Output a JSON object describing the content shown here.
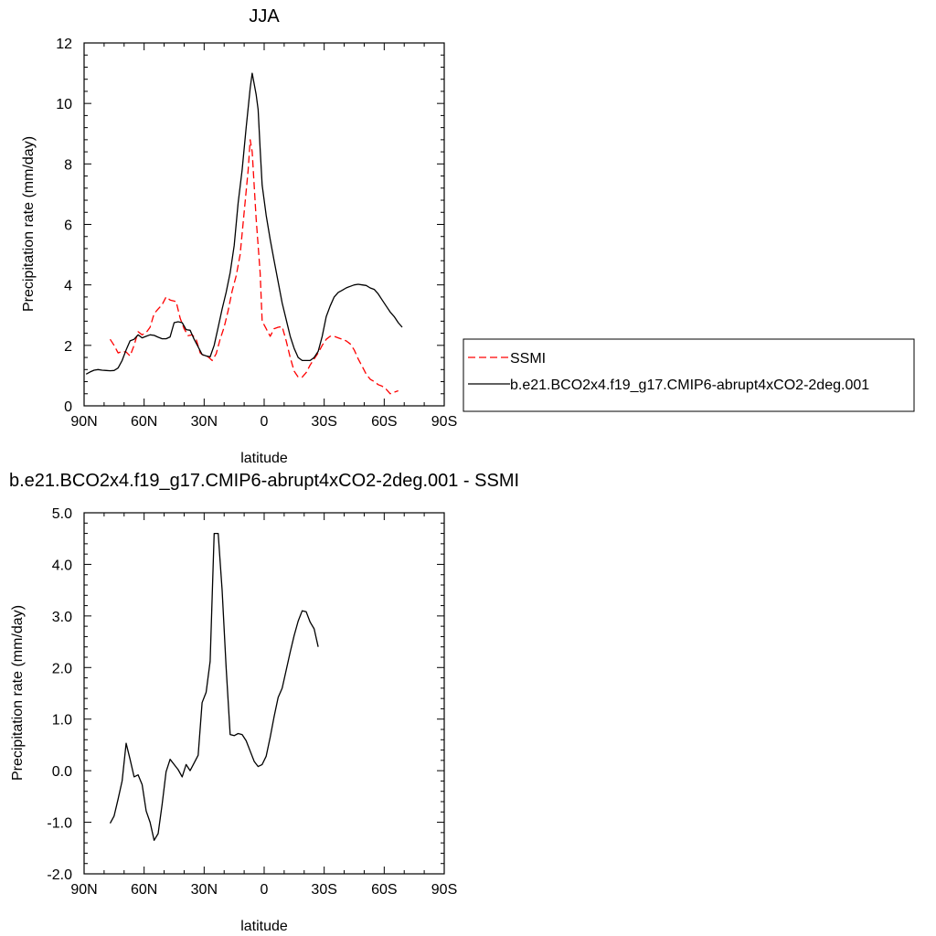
{
  "chart_data": [
    {
      "type": "line",
      "title": "JJA",
      "xlabel": "latitude",
      "ylabel": "Precipitation rate (mm/day)",
      "xlim": [
        90,
        -90
      ],
      "ylim": [
        0,
        12
      ],
      "x_ticks": [
        {
          "value": 90,
          "label": "90N"
        },
        {
          "value": 60,
          "label": "60N"
        },
        {
          "value": 30,
          "label": "30N"
        },
        {
          "value": 0,
          "label": "0"
        },
        {
          "value": -30,
          "label": "30S"
        },
        {
          "value": -60,
          "label": "60S"
        },
        {
          "value": -90,
          "label": "90S"
        }
      ],
      "y_ticks": [
        {
          "value": 0,
          "label": "0"
        },
        {
          "value": 2,
          "label": "2"
        },
        {
          "value": 4,
          "label": "4"
        },
        {
          "value": 6,
          "label": "6"
        },
        {
          "value": 8,
          "label": "8"
        },
        {
          "value": 10,
          "label": "10"
        },
        {
          "value": 12,
          "label": "12"
        }
      ],
      "legend_placement": "right",
      "series": [
        {
          "name": "SSMI",
          "color": "#ff0000",
          "dash": true,
          "points": [
            [
              77,
              2.2
            ],
            [
              75,
              2.0
            ],
            [
              73,
              1.75
            ],
            [
              71,
              1.8
            ],
            [
              69,
              1.78
            ],
            [
              67,
              1.65
            ],
            [
              65,
              2.0
            ],
            [
              63,
              2.45
            ],
            [
              61,
              2.35
            ],
            [
              59,
              2.42
            ],
            [
              57,
              2.6
            ],
            [
              55,
              3.05
            ],
            [
              53,
              3.2
            ],
            [
              51,
              3.35
            ],
            [
              49,
              3.6
            ],
            [
              47,
              3.5
            ],
            [
              44,
              3.45
            ],
            [
              42,
              2.9
            ],
            [
              40,
              2.55
            ],
            [
              38,
              2.32
            ],
            [
              36,
              2.35
            ],
            [
              34,
              2.2
            ],
            [
              32,
              1.75
            ],
            [
              30,
              1.65
            ],
            [
              28,
              1.62
            ],
            [
              26,
              1.5
            ],
            [
              24,
              1.72
            ],
            [
              22,
              2.2
            ],
            [
              20,
              2.6
            ],
            [
              18,
              3.15
            ],
            [
              16,
              3.8
            ],
            [
              14,
              4.3
            ],
            [
              12,
              5.0
            ],
            [
              10,
              6.4
            ],
            [
              8,
              7.8
            ],
            [
              7,
              8.8
            ],
            [
              6,
              8.4
            ],
            [
              4,
              6.2
            ],
            [
              2,
              4.4
            ],
            [
              1,
              2.8
            ],
            [
              -1,
              2.55
            ],
            [
              -3,
              2.3
            ],
            [
              -5,
              2.55
            ],
            [
              -7,
              2.6
            ],
            [
              -9,
              2.62
            ],
            [
              -11,
              2.15
            ],
            [
              -13,
              1.6
            ],
            [
              -15,
              1.15
            ],
            [
              -17,
              0.95
            ],
            [
              -19,
              0.95
            ],
            [
              -21,
              1.1
            ],
            [
              -23,
              1.35
            ],
            [
              -25,
              1.55
            ],
            [
              -27,
              1.75
            ],
            [
              -29,
              2.0
            ],
            [
              -31,
              2.2
            ],
            [
              -33,
              2.3
            ],
            [
              -35,
              2.3
            ],
            [
              -37,
              2.25
            ],
            [
              -39,
              2.2
            ],
            [
              -41,
              2.15
            ],
            [
              -43,
              2.05
            ],
            [
              -45,
              1.85
            ],
            [
              -47,
              1.55
            ],
            [
              -49,
              1.3
            ],
            [
              -51,
              1.05
            ],
            [
              -53,
              0.88
            ],
            [
              -55,
              0.8
            ],
            [
              -57,
              0.7
            ],
            [
              -59,
              0.65
            ],
            [
              -61,
              0.55
            ],
            [
              -63,
              0.4
            ],
            [
              -65,
              0.45
            ],
            [
              -67,
              0.5
            ]
          ]
        },
        {
          "name": "b.e21.BCO2x4.f19_g17.CMIP6-abrupt4xCO2-2deg.001",
          "color": "#000000",
          "dash": false,
          "points": [
            [
              89,
              1.05
            ],
            [
              87,
              1.12
            ],
            [
              85,
              1.18
            ],
            [
              83,
              1.2
            ],
            [
              81,
              1.18
            ],
            [
              79,
              1.17
            ],
            [
              77,
              1.16
            ],
            [
              75,
              1.17
            ],
            [
              73,
              1.25
            ],
            [
              71,
              1.5
            ],
            [
              69,
              1.85
            ],
            [
              67,
              2.15
            ],
            [
              65,
              2.2
            ],
            [
              63,
              2.35
            ],
            [
              61,
              2.25
            ],
            [
              59,
              2.3
            ],
            [
              57,
              2.35
            ],
            [
              55,
              2.33
            ],
            [
              53,
              2.27
            ],
            [
              51,
              2.22
            ],
            [
              49,
              2.22
            ],
            [
              47,
              2.28
            ],
            [
              45,
              2.75
            ],
            [
              43,
              2.78
            ],
            [
              41,
              2.75
            ],
            [
              39,
              2.52
            ],
            [
              37,
              2.5
            ],
            [
              35,
              2.2
            ],
            [
              33,
              1.95
            ],
            [
              31,
              1.7
            ],
            [
              29,
              1.65
            ],
            [
              27,
              1.62
            ],
            [
              25,
              2.0
            ],
            [
              23,
              2.6
            ],
            [
              21,
              3.2
            ],
            [
              19,
              3.75
            ],
            [
              17,
              4.4
            ],
            [
              15,
              5.3
            ],
            [
              13,
              6.7
            ],
            [
              11,
              7.8
            ],
            [
              9,
              9.2
            ],
            [
              7,
              10.5
            ],
            [
              6,
              11.0
            ],
            [
              4,
              10.3
            ],
            [
              3,
              9.8
            ],
            [
              2,
              8.5
            ],
            [
              1,
              7.3
            ],
            [
              -1,
              6.3
            ],
            [
              -3,
              5.5
            ],
            [
              -5,
              4.8
            ],
            [
              -7,
              4.1
            ],
            [
              -9,
              3.4
            ],
            [
              -11,
              2.85
            ],
            [
              -13,
              2.3
            ],
            [
              -15,
              1.9
            ],
            [
              -17,
              1.6
            ],
            [
              -19,
              1.5
            ],
            [
              -21,
              1.5
            ],
            [
              -23,
              1.5
            ],
            [
              -25,
              1.6
            ],
            [
              -27,
              1.8
            ],
            [
              -29,
              2.3
            ],
            [
              -31,
              2.95
            ],
            [
              -33,
              3.3
            ],
            [
              -35,
              3.6
            ],
            [
              -37,
              3.75
            ],
            [
              -39,
              3.82
            ],
            [
              -41,
              3.9
            ],
            [
              -43,
              3.95
            ],
            [
              -45,
              4.0
            ],
            [
              -47,
              4.02
            ],
            [
              -49,
              4.0
            ],
            [
              -51,
              3.98
            ],
            [
              -53,
              3.9
            ],
            [
              -55,
              3.85
            ],
            [
              -57,
              3.7
            ],
            [
              -59,
              3.5
            ],
            [
              -61,
              3.3
            ],
            [
              -63,
              3.1
            ],
            [
              -65,
              2.95
            ],
            [
              -67,
              2.75
            ],
            [
              -69,
              2.6
            ]
          ]
        }
      ]
    },
    {
      "type": "line",
      "title": "b.e21.BCO2x4.f19_g17.CMIP6-abrupt4xCO2-2deg.001 - SSMI",
      "xlabel": "latitude",
      "ylabel": "Precipitation rate (mm/day)",
      "xlim": [
        90,
        -90
      ],
      "ylim": [
        -2,
        5
      ],
      "x_ticks": [
        {
          "value": 90,
          "label": "90N"
        },
        {
          "value": 60,
          "label": "60N"
        },
        {
          "value": 30,
          "label": "30N"
        },
        {
          "value": 0,
          "label": "0"
        },
        {
          "value": -30,
          "label": "30S"
        },
        {
          "value": -60,
          "label": "60S"
        },
        {
          "value": -90,
          "label": "90S"
        }
      ],
      "y_ticks": [
        {
          "value": -2,
          "label": "-2.0"
        },
        {
          "value": -1,
          "label": "-1.0"
        },
        {
          "value": 0,
          "label": "0.0"
        },
        {
          "value": 1,
          "label": "1.0"
        },
        {
          "value": 2,
          "label": "2.0"
        },
        {
          "value": 3,
          "label": "3.0"
        },
        {
          "value": 4,
          "label": "4.0"
        },
        {
          "value": 5,
          "label": "5.0"
        }
      ],
      "series": [
        {
          "color": "#000000",
          "dash": false,
          "points": [
            [
              77,
              -1.02
            ],
            [
              75,
              -0.88
            ],
            [
              73,
              -0.55
            ],
            [
              71,
              -0.2
            ],
            [
              69,
              0.53
            ],
            [
              67,
              0.22
            ],
            [
              65,
              -0.12
            ],
            [
              63,
              -0.08
            ],
            [
              61,
              -0.27
            ],
            [
              59,
              -0.78
            ],
            [
              57,
              -1.0
            ],
            [
              55,
              -1.35
            ],
            [
              53,
              -1.22
            ],
            [
              51,
              -0.65
            ],
            [
              49,
              -0.02
            ],
            [
              47,
              0.22
            ],
            [
              45,
              0.12
            ],
            [
              43,
              0.02
            ],
            [
              41,
              -0.12
            ],
            [
              39,
              0.12
            ],
            [
              37,
              0.0
            ],
            [
              35,
              0.15
            ],
            [
              33,
              0.3
            ],
            [
              31,
              1.32
            ],
            [
              29,
              1.52
            ],
            [
              27,
              2.12
            ],
            [
              25,
              4.6
            ],
            [
              23,
              4.6
            ],
            [
              21,
              3.5
            ],
            [
              19,
              2.0
            ],
            [
              17,
              0.7
            ],
            [
              15,
              0.68
            ],
            [
              13,
              0.72
            ],
            [
              11,
              0.7
            ],
            [
              9,
              0.58
            ],
            [
              7,
              0.38
            ],
            [
              5,
              0.18
            ],
            [
              3,
              0.08
            ],
            [
              1,
              0.12
            ],
            [
              -1,
              0.28
            ],
            [
              -3,
              0.65
            ],
            [
              -5,
              1.05
            ],
            [
              -7,
              1.42
            ],
            [
              -9,
              1.6
            ],
            [
              -11,
              1.95
            ],
            [
              -13,
              2.3
            ],
            [
              -15,
              2.62
            ],
            [
              -17,
              2.9
            ],
            [
              -19,
              3.1
            ],
            [
              -21,
              3.08
            ],
            [
              -23,
              2.88
            ],
            [
              -25,
              2.75
            ],
            [
              -27,
              2.4
            ]
          ]
        }
      ]
    }
  ]
}
